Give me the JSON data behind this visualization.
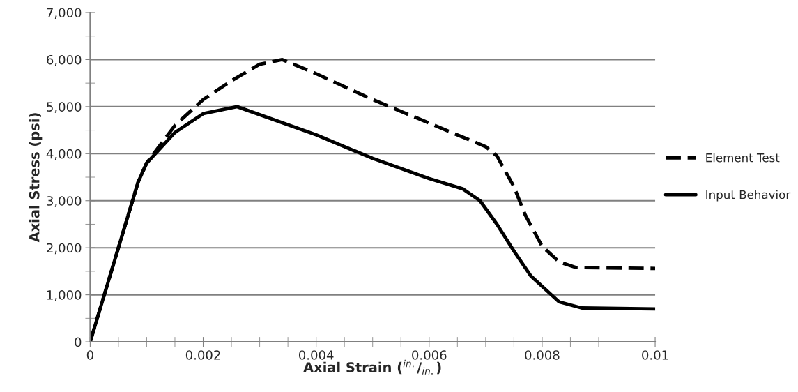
{
  "chart_data": {
    "type": "line",
    "xlabel": "Axial Strain ($^{in.}$/$_{in.}$)",
    "ylabel": "Axial Stress (psi)",
    "xlim": [
      0,
      0.01
    ],
    "xticks": [
      0,
      0.002,
      0.004,
      0.006,
      0.008,
      0.01
    ],
    "ylim": [
      0,
      7000
    ],
    "yticks": [
      {
        "value": 0,
        "label": "0"
      },
      {
        "value": 1000,
        "label": "1,000"
      },
      {
        "value": 2000,
        "label": "2,000"
      },
      {
        "value": 3000,
        "label": "3,000"
      },
      {
        "value": 4000,
        "label": "4,000"
      },
      {
        "value": 5000,
        "label": "5,000"
      },
      {
        "value": 6000,
        "label": "6,000"
      },
      {
        "value": 7000,
        "label": "7,000"
      }
    ],
    "grid": "y",
    "legend": "right",
    "marker": "none",
    "series": [
      {
        "name": "Element Test",
        "color": "#000000",
        "line_style": "dashed",
        "x": [
          0,
          0.00085,
          0.001,
          0.0015,
          0.002,
          0.0025,
          0.003,
          0.0034,
          0.004,
          0.005,
          0.006,
          0.007,
          0.0072,
          0.0075,
          0.0077,
          0.008,
          0.0083,
          0.0086,
          0.01
        ],
        "values": [
          0,
          3400,
          3800,
          4600,
          5150,
          5550,
          5900,
          6000,
          5700,
          5150,
          4650,
          4150,
          3950,
          3300,
          2700,
          2030,
          1700,
          1580,
          1560
        ]
      },
      {
        "name": "Input Behavior",
        "color": "#000000",
        "line_style": "solid",
        "x": [
          0,
          0.00085,
          0.001,
          0.0015,
          0.002,
          0.0026,
          0.004,
          0.005,
          0.006,
          0.0066,
          0.0069,
          0.0072,
          0.0075,
          0.0078,
          0.008,
          0.0083,
          0.0087,
          0.01
        ],
        "values": [
          0,
          3400,
          3800,
          4450,
          4850,
          5000,
          4400,
          3900,
          3470,
          3250,
          3000,
          2500,
          1930,
          1400,
          1180,
          850,
          720,
          700
        ]
      }
    ]
  }
}
